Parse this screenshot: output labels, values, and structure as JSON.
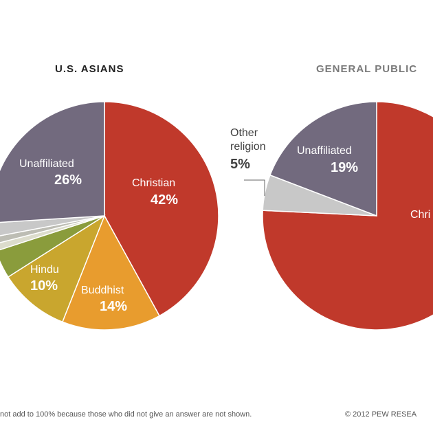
{
  "colors": {
    "christian": "#c0392b",
    "buddhist": "#e89c2e",
    "hindu": "#c9a62e",
    "muslim": "#8a9c3c",
    "small_a": "#dcdccc",
    "small_b": "#bdbdb4",
    "other": "#c8c8c8",
    "unaffiliated": "#726a7e",
    "title": "#222222",
    "title_muted": "#7a7a7a"
  },
  "chart_data": [
    {
      "type": "pie",
      "title": "U.S. ASIANS",
      "slices": [
        {
          "label": "Christian",
          "value": 42,
          "color_key": "christian",
          "value_label": "42%"
        },
        {
          "label": "Buddhist",
          "value": 14,
          "color_key": "buddhist",
          "value_label": "14%"
        },
        {
          "label": "Hindu",
          "value": 10,
          "color_key": "hindu",
          "value_label": "10%"
        },
        {
          "label": "",
          "value": 4,
          "color_key": "muslim",
          "value_label": ""
        },
        {
          "label": "",
          "value": 1,
          "color_key": "small_a",
          "value_label": ""
        },
        {
          "label": "",
          "value": 1,
          "color_key": "small_b",
          "value_label": ""
        },
        {
          "label": "",
          "value": 2,
          "color_key": "other",
          "value_label": ""
        },
        {
          "label": "Unaffiliated",
          "value": 26,
          "color_key": "unaffiliated",
          "value_label": "26%"
        }
      ]
    },
    {
      "type": "pie",
      "title": "GENERAL PUBLIC",
      "slices": [
        {
          "label": "Christian",
          "value": 75,
          "color_key": "christian",
          "value_label": ""
        },
        {
          "label": "Other religion",
          "value": 5,
          "color_key": "other",
          "value_label": "5%"
        },
        {
          "label": "Unaffiliated",
          "value": 19,
          "color_key": "unaffiliated",
          "value_label": "19%"
        }
      ]
    }
  ],
  "labels": {
    "asians_title": "U.S. ASIANS",
    "public_title": "GENERAL PUBLIC",
    "a_unaffiliated": "Unaffiliated",
    "a_unaffiliated_pct": "26%",
    "a_christian": "Christian",
    "a_christian_pct": "42%",
    "a_buddhist": "Buddhist",
    "a_buddhist_pct": "14%",
    "a_hindu": "Hindu",
    "a_hindu_pct": "10%",
    "p_other_1": "Other",
    "p_other_2": "religion",
    "p_other_pct": "5%",
    "p_unaffiliated": "Unaffiliated",
    "p_unaffiliated_pct": "19%",
    "p_christian": "Chri",
    "footer_note": "not add to 100% because those who did not give an answer are not shown.",
    "footer_credit": "© 2012 PEW RESEA"
  }
}
